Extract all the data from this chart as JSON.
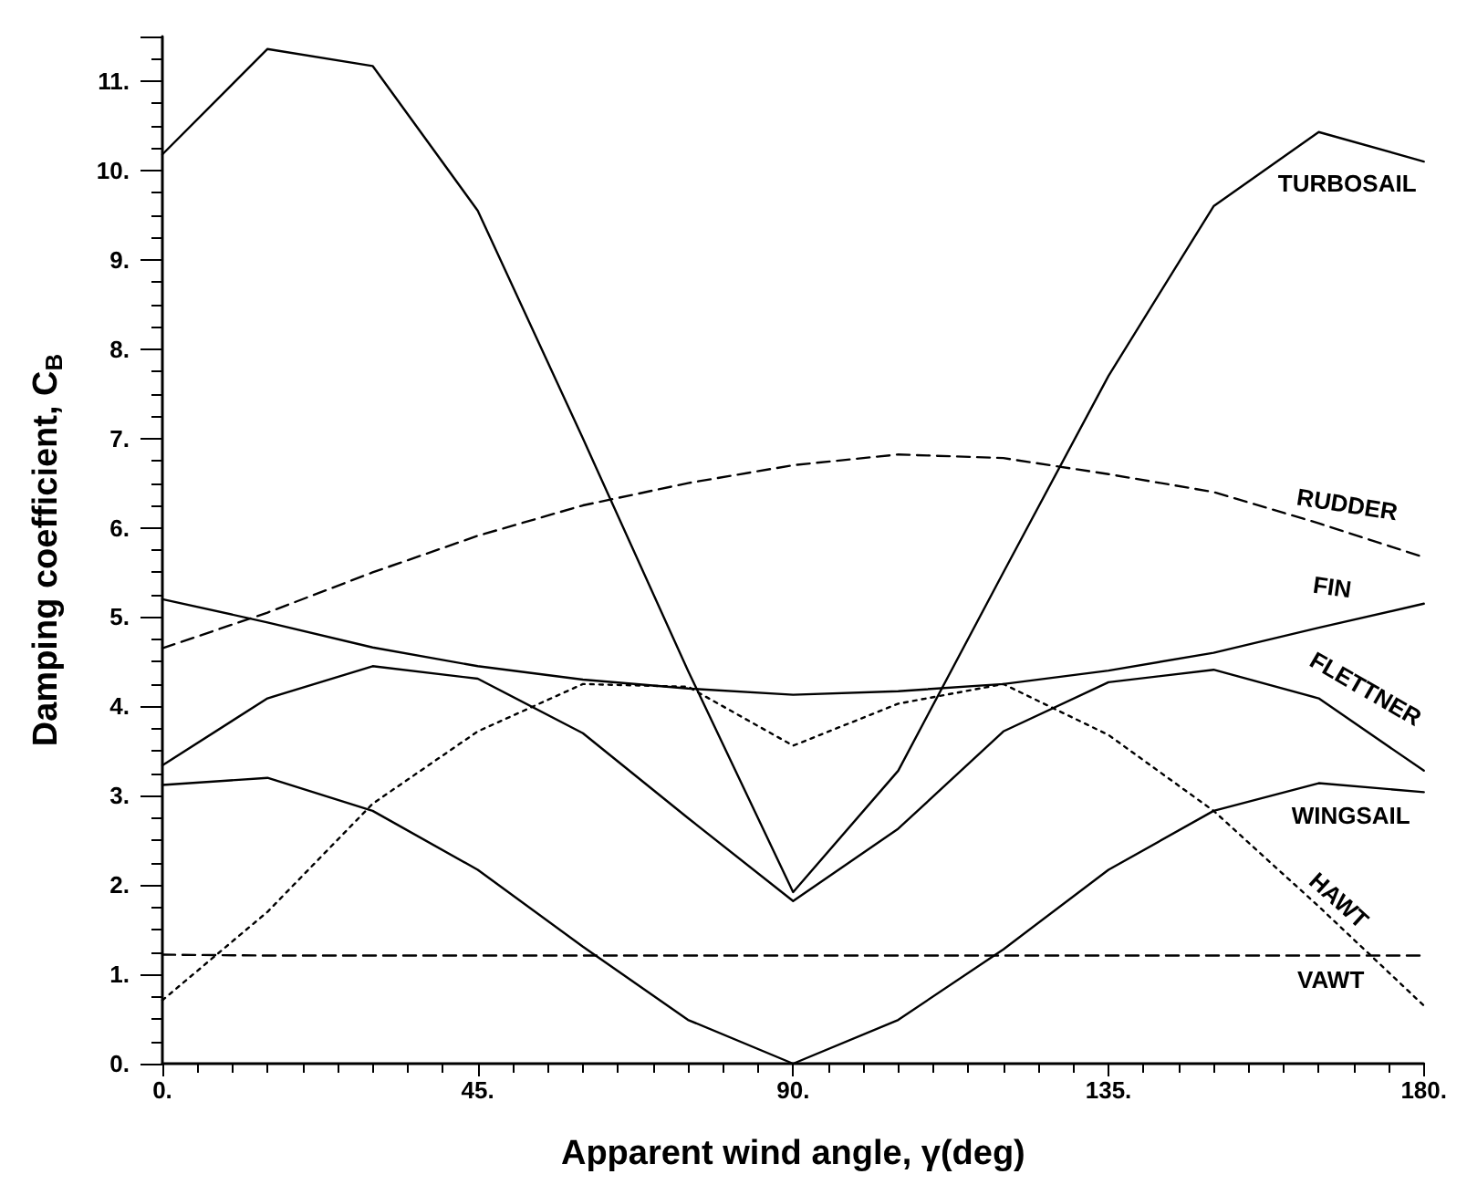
{
  "chart_data": {
    "type": "line",
    "xlabel": "Apparent wind angle, γ(deg)",
    "ylabel": "Damping coefficient, C$_{B}$",
    "x": [
      0,
      15,
      30,
      45,
      60,
      75,
      90,
      105,
      120,
      135,
      150,
      165,
      180
    ],
    "xlim": [
      0,
      180
    ],
    "xticks": [
      {
        "value": 0,
        "label": "0."
      },
      {
        "value": 45,
        "label": "45."
      },
      {
        "value": 90,
        "label": "90."
      },
      {
        "value": 135,
        "label": "135."
      },
      {
        "value": 180,
        "label": "180."
      }
    ],
    "ylim": [
      0,
      11.5
    ],
    "yticks": [
      {
        "value": 0,
        "label": "0."
      },
      {
        "value": 1,
        "label": "1."
      },
      {
        "value": 2,
        "label": "2."
      },
      {
        "value": 3,
        "label": "3."
      },
      {
        "value": 4,
        "label": "4."
      },
      {
        "value": 5,
        "label": "5."
      },
      {
        "value": 6,
        "label": "6."
      },
      {
        "value": 7,
        "label": "7."
      },
      {
        "value": 8,
        "label": "8."
      },
      {
        "value": 9,
        "label": "9."
      },
      {
        "value": 10,
        "label": "10."
      },
      {
        "value": 11,
        "label": "11."
      }
    ],
    "grid": false,
    "legend": false,
    "marker": "none",
    "series": [
      {
        "name": "TURBOSAIL",
        "color": "#000000",
        "line_style": "solid",
        "values": [
          10.18,
          11.36,
          11.17,
          9.55,
          7.0,
          4.4,
          1.92,
          3.28,
          5.5,
          7.7,
          9.6,
          10.43,
          10.1
        ]
      },
      {
        "name": "RUDDER",
        "color": "#000000",
        "line_style": "dashed",
        "values": [
          4.65,
          5.05,
          5.5,
          5.91,
          6.25,
          6.5,
          6.7,
          6.82,
          6.78,
          6.6,
          6.4,
          6.05,
          5.67
        ]
      },
      {
        "name": "FIN",
        "color": "#000000",
        "line_style": "solid",
        "values": [
          5.2,
          4.94,
          4.66,
          4.45,
          4.3,
          4.2,
          4.13,
          4.17,
          4.25,
          4.4,
          4.6,
          4.88,
          5.15
        ]
      },
      {
        "name": "FLETTNER",
        "color": "#000000",
        "line_style": "solid",
        "values": [
          3.34,
          4.09,
          4.45,
          4.31,
          3.7,
          2.75,
          1.82,
          2.63,
          3.72,
          4.27,
          4.41,
          4.09,
          3.28
        ]
      },
      {
        "name": "WINGSAIL",
        "color": "#000000",
        "line_style": "solid",
        "values": [
          3.12,
          3.2,
          2.83,
          2.17,
          1.31,
          0.49,
          0,
          0.49,
          1.28,
          2.17,
          2.83,
          3.14,
          3.04
        ]
      },
      {
        "name": "HAWT",
        "color": "#000000",
        "line_style": "dotted",
        "values": [
          0.71,
          1.7,
          2.91,
          3.72,
          4.25,
          4.22,
          3.56,
          4.03,
          4.25,
          3.68,
          2.83,
          1.76,
          0.65
        ]
      },
      {
        "name": "VAWT",
        "color": "#000000",
        "line_style": "dashed",
        "values": [
          1.22,
          1.21,
          1.21,
          1.21,
          1.21,
          1.21,
          1.21,
          1.21,
          1.21,
          1.21,
          1.21,
          1.21,
          1.21
        ]
      }
    ]
  }
}
